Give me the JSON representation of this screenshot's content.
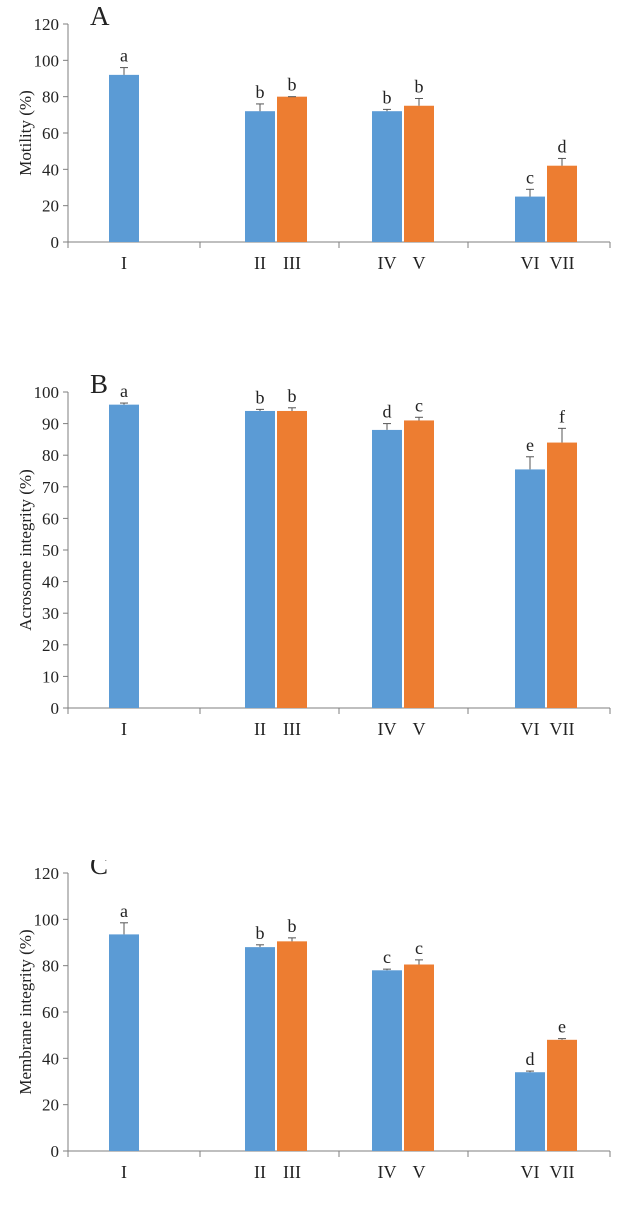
{
  "colors": {
    "blue": "#5B9BD5",
    "orange": "#ED7D31",
    "axis": "#7f7f7f",
    "errorbar": "#555555"
  },
  "chart_data": [
    {
      "type": "bar",
      "panel_label": "A",
      "title": "",
      "ylabel": "Motility (%)",
      "xlabel": "",
      "ylim": [
        0,
        120
      ],
      "yticks": [
        0,
        20,
        40,
        60,
        80,
        100,
        120
      ],
      "grid": false,
      "groups": [
        {
          "bars": [
            {
              "label": "I",
              "value": 92,
              "error": 4,
              "sig": "a",
              "color": "blue"
            }
          ]
        },
        {
          "bars": [
            {
              "label": "II",
              "value": 72,
              "error": 4,
              "sig": "b",
              "color": "blue"
            },
            {
              "label": "III",
              "value": 80,
              "error": 0,
              "sig": "b",
              "color": "orange"
            }
          ]
        },
        {
          "bars": [
            {
              "label": "IV",
              "value": 72,
              "error": 1,
              "sig": "b",
              "color": "blue"
            },
            {
              "label": "V",
              "value": 75,
              "error": 4,
              "sig": "b",
              "color": "orange"
            }
          ]
        },
        {
          "bars": [
            {
              "label": "VI",
              "value": 25,
              "error": 4,
              "sig": "c",
              "color": "blue"
            },
            {
              "label": "VII",
              "value": 42,
              "error": 4,
              "sig": "d",
              "color": "orange"
            }
          ]
        }
      ]
    },
    {
      "type": "bar",
      "panel_label": "B",
      "title": "",
      "ylabel": "Acrosome integrity (%)",
      "xlabel": "",
      "ylim": [
        0,
        100
      ],
      "yticks": [
        0,
        10,
        20,
        30,
        40,
        50,
        60,
        70,
        80,
        90,
        100
      ],
      "grid": false,
      "groups": [
        {
          "bars": [
            {
              "label": "I",
              "value": 96,
              "error": 0.5,
              "sig": "a",
              "color": "blue"
            }
          ]
        },
        {
          "bars": [
            {
              "label": "II",
              "value": 94,
              "error": 0.5,
              "sig": "b",
              "color": "blue"
            },
            {
              "label": "III",
              "value": 94,
              "error": 1,
              "sig": "b",
              "color": "orange"
            }
          ]
        },
        {
          "bars": [
            {
              "label": "IV",
              "value": 88,
              "error": 2,
              "sig": "d",
              "color": "blue"
            },
            {
              "label": "V",
              "value": 91,
              "error": 1,
              "sig": "c",
              "color": "orange"
            }
          ]
        },
        {
          "bars": [
            {
              "label": "VI",
              "value": 75.5,
              "error": 4,
              "sig": "e",
              "color": "blue"
            },
            {
              "label": "VII",
              "value": 84,
              "error": 4.5,
              "sig": "f",
              "color": "orange"
            }
          ]
        }
      ]
    },
    {
      "type": "bar",
      "panel_label": "C",
      "title": "",
      "ylabel": "Membrane integrity (%)",
      "xlabel": "",
      "ylim": [
        0,
        120
      ],
      "yticks": [
        0,
        20,
        40,
        60,
        80,
        100,
        120
      ],
      "grid": false,
      "groups": [
        {
          "bars": [
            {
              "label": "I",
              "value": 93.5,
              "error": 5,
              "sig": "a",
              "color": "blue"
            }
          ]
        },
        {
          "bars": [
            {
              "label": "II",
              "value": 88,
              "error": 1,
              "sig": "b",
              "color": "blue"
            },
            {
              "label": "III",
              "value": 90.5,
              "error": 1.5,
              "sig": "b",
              "color": "orange"
            }
          ]
        },
        {
          "bars": [
            {
              "label": "IV",
              "value": 78,
              "error": 0.5,
              "sig": "c",
              "color": "blue"
            },
            {
              "label": "V",
              "value": 80.5,
              "error": 2,
              "sig": "c",
              "color": "orange"
            }
          ]
        },
        {
          "bars": [
            {
              "label": "VI",
              "value": 34,
              "error": 0.5,
              "sig": "d",
              "color": "blue"
            },
            {
              "label": "VII",
              "value": 48,
              "error": 0.5,
              "sig": "e",
              "color": "orange"
            }
          ]
        }
      ]
    }
  ]
}
